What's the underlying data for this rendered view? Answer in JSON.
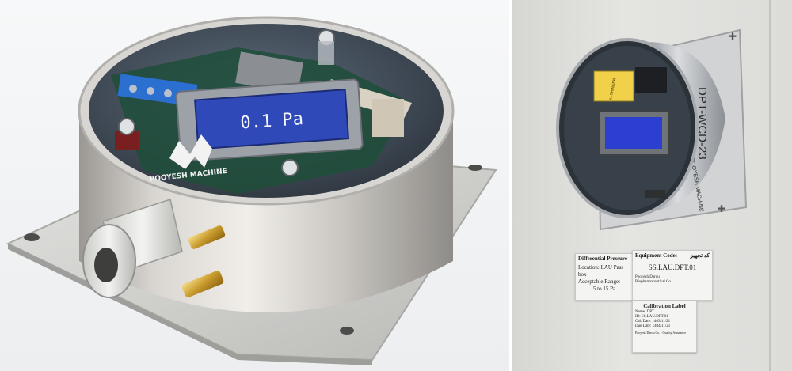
{
  "left_render": {
    "display_value": "0.1 Pa",
    "brand": "POOYESH MACHINE"
  },
  "right_photo": {
    "wifi_module_text": "AI-THINKER",
    "enclosure_model": "DPT-WCD-23",
    "enclosure_brand": "POOYESH MACHINE",
    "label_range": {
      "title": "Differential Pressure",
      "location": "Location: LAU Pass box",
      "range_label": "Acceptable Range:",
      "range_value": "5 to 15 Pa"
    },
    "label_equipment": {
      "title": "Equipment Code:",
      "title_fa": "کد تجهیز",
      "code": "SS.LAU.DPT.01",
      "company": "Pooyesh Darou",
      "company_sub": "Biopharmaceutical Co"
    },
    "label_calibration": {
      "title": "Calibration Label",
      "name": "Name: DPT",
      "id": "ID: SS.LAU.DPT.01",
      "cal_date": "Cal. Date: 1403/11/21",
      "due_date": "Due Date: 1404/11/21",
      "footer": "Pooyesh Darou Co. - Quality Assurance"
    }
  }
}
